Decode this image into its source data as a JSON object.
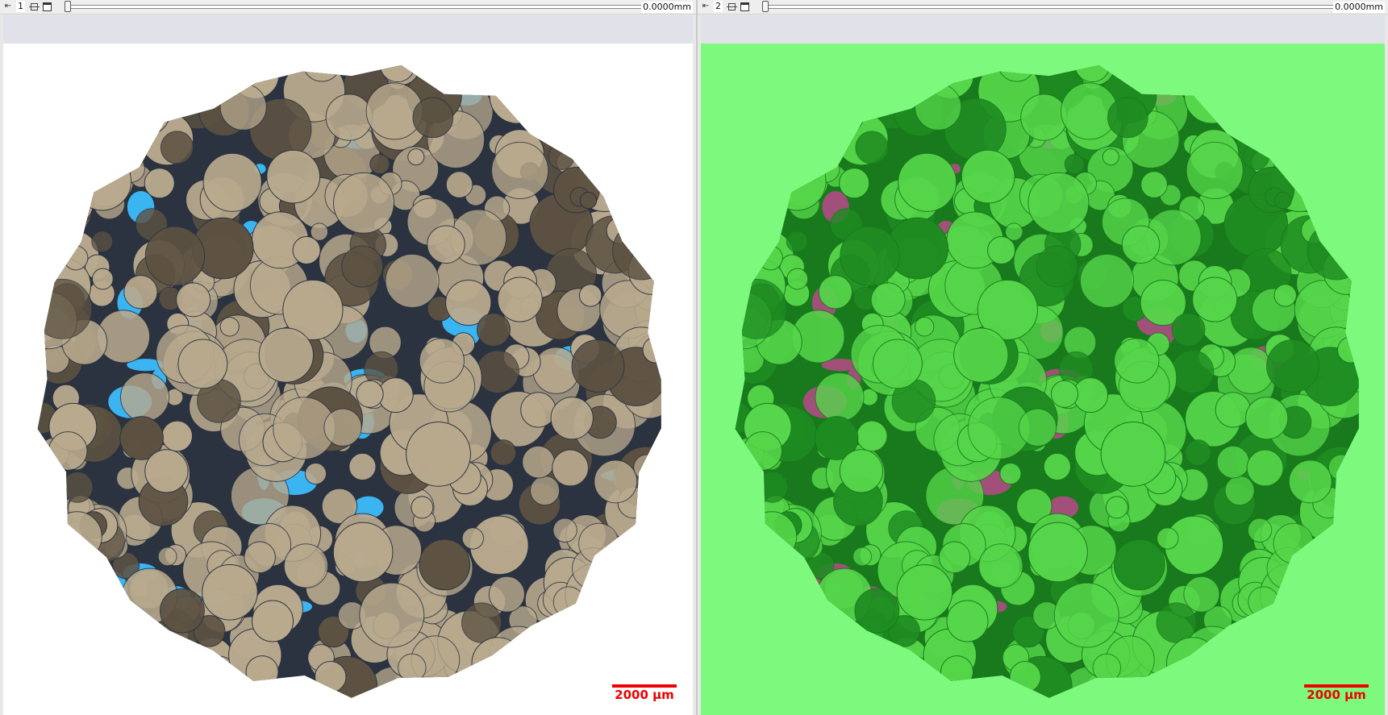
{
  "viewers": [
    {
      "number": "1",
      "depth": "0.0000mm",
      "scale_label": "2000 µm",
      "image": "thin-section micrograph (plane-polarized light, blue-dyed porosity)",
      "colors": {
        "background": "#ffffff",
        "grain": "#b9aa8e",
        "grain_dark": "#5d5242",
        "pore": "#3bb4f2",
        "cement": "#2b3340"
      }
    },
    {
      "number": "2",
      "depth": "0.0000mm",
      "scale_label": "2000 µm",
      "image": "segmented phase map (green grains, magenta pores)",
      "colors": {
        "background": "#7dfa7d",
        "grain": "#56d64a",
        "grain_dark": "#1f8c22",
        "pore": "#a2507a",
        "cement": "#187a1c"
      }
    }
  ]
}
